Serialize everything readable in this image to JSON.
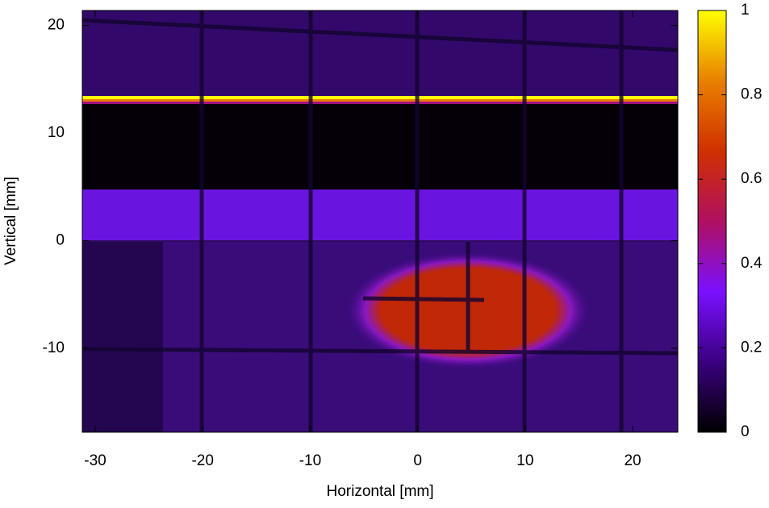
{
  "chart_data": {
    "type": "heatmap",
    "x_label": "Horizontal [mm]",
    "y_label": "Vertical [mm]",
    "xlim": [
      -31.2,
      24.2
    ],
    "xticks": [
      -30,
      -20,
      -10,
      0,
      10,
      20
    ],
    "ylim": [
      -17.8,
      21.4
    ],
    "yticks": [
      -10,
      0,
      10,
      20
    ],
    "zlim": [
      0,
      1
    ],
    "zticks": [
      0,
      0.2,
      0.4,
      0.6,
      0.8,
      1
    ],
    "colormap": [
      "#000000",
      "#3a0080",
      "#7a10ff",
      "#b01060",
      "#d03000",
      "#e88000",
      "#ffff00"
    ]
  }
}
